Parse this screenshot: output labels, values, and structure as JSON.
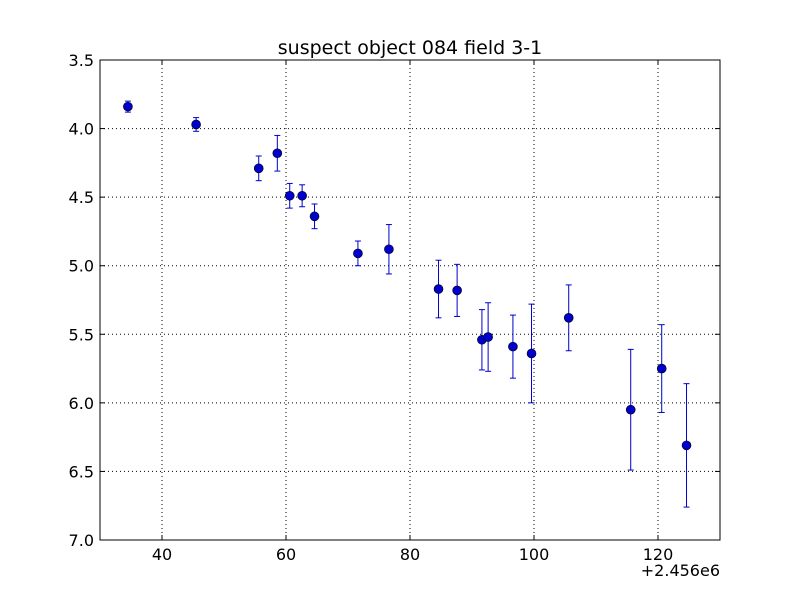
{
  "chart_data": {
    "type": "scatter",
    "title": "suspect object 084 field 3-1",
    "xlabel": "",
    "ylabel": "",
    "x_offset_label": "+2.456e6",
    "xlim": [
      30,
      130
    ],
    "ylim": [
      3.5,
      7.0
    ],
    "y_inverted": true,
    "grid": true,
    "x_ticks": [
      40,
      60,
      80,
      100,
      120
    ],
    "x_tick_labels": [
      "40",
      "60",
      "80",
      "100",
      "120"
    ],
    "y_ticks": [
      3.5,
      4.0,
      4.5,
      5.0,
      5.5,
      6.0,
      6.5,
      7.0
    ],
    "y_tick_labels": [
      "3.5",
      "4.0",
      "4.5",
      "5.0",
      "5.5",
      "6.0",
      "6.5",
      "7.0"
    ],
    "series": [
      {
        "marker_color": "#0000cc",
        "errorbar_color": "#0000cc",
        "points": [
          {
            "x": 34.5,
            "y": 3.84,
            "err": 0.04
          },
          {
            "x": 45.5,
            "y": 3.97,
            "err": 0.05
          },
          {
            "x": 55.6,
            "y": 4.29,
            "err": 0.09
          },
          {
            "x": 58.6,
            "y": 4.18,
            "err": 0.13
          },
          {
            "x": 60.6,
            "y": 4.49,
            "err": 0.09
          },
          {
            "x": 62.6,
            "y": 4.49,
            "err": 0.08
          },
          {
            "x": 64.6,
            "y": 4.64,
            "err": 0.09
          },
          {
            "x": 71.6,
            "y": 4.91,
            "err": 0.09
          },
          {
            "x": 76.6,
            "y": 4.88,
            "err": 0.18
          },
          {
            "x": 84.6,
            "y": 5.17,
            "err": 0.21
          },
          {
            "x": 87.6,
            "y": 5.18,
            "err": 0.19
          },
          {
            "x": 91.6,
            "y": 5.54,
            "err": 0.22
          },
          {
            "x": 92.6,
            "y": 5.52,
            "err": 0.25
          },
          {
            "x": 96.6,
            "y": 5.59,
            "err": 0.23
          },
          {
            "x": 99.6,
            "y": 5.64,
            "err": 0.36
          },
          {
            "x": 105.6,
            "y": 5.38,
            "err": 0.24
          },
          {
            "x": 115.6,
            "y": 6.05,
            "err": 0.44
          },
          {
            "x": 120.6,
            "y": 5.75,
            "err": 0.32
          },
          {
            "x": 124.6,
            "y": 6.31,
            "err": 0.45
          }
        ]
      }
    ]
  }
}
